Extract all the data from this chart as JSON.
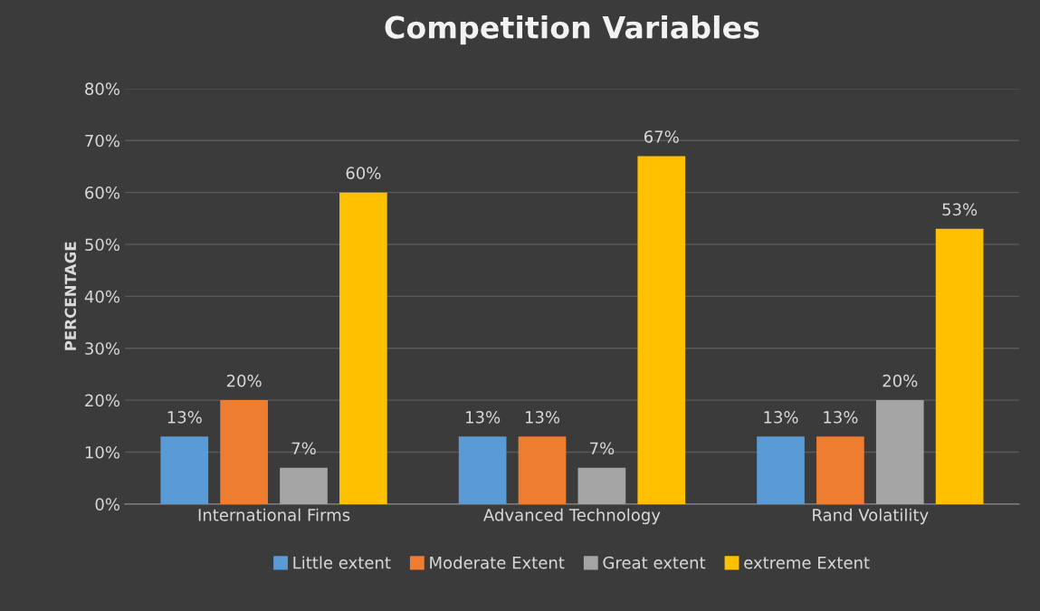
{
  "chart_data": {
    "type": "bar",
    "title": "Competition Variables",
    "ylabel": "PERCENTAGE",
    "categories": [
      "International Firms",
      "Advanced Technology",
      "Rand Volatility"
    ],
    "series": [
      {
        "name": "Little extent",
        "color": "#5b9bd5",
        "values": [
          13,
          13,
          13
        ],
        "value_labels": [
          "13%",
          "13%",
          "13%"
        ]
      },
      {
        "name": "Moderate Extent",
        "color": "#ed7d31",
        "values": [
          20,
          13,
          13
        ],
        "value_labels": [
          "20%",
          "13%",
          "13%"
        ]
      },
      {
        "name": "Great extent",
        "color": "#a5a5a5",
        "values": [
          7,
          7,
          20
        ],
        "value_labels": [
          "7%",
          "7%",
          "20%"
        ]
      },
      {
        "name": "extreme Extent",
        "color": "#ffc000",
        "values": [
          60,
          67,
          53
        ],
        "value_labels": [
          "60%",
          "67%",
          "53%"
        ]
      }
    ],
    "ylim": [
      0,
      80
    ],
    "yticks": [
      {
        "value": 0,
        "label": "0%"
      },
      {
        "value": 10,
        "label": "10%"
      },
      {
        "value": 20,
        "label": "20%"
      },
      {
        "value": 30,
        "label": "30%"
      },
      {
        "value": 40,
        "label": "40%"
      },
      {
        "value": 50,
        "label": "50%"
      },
      {
        "value": 60,
        "label": "60%"
      },
      {
        "value": 70,
        "label": "70%"
      },
      {
        "value": 80,
        "label": "80%"
      }
    ],
    "grid": "y",
    "legend": "bottom"
  }
}
